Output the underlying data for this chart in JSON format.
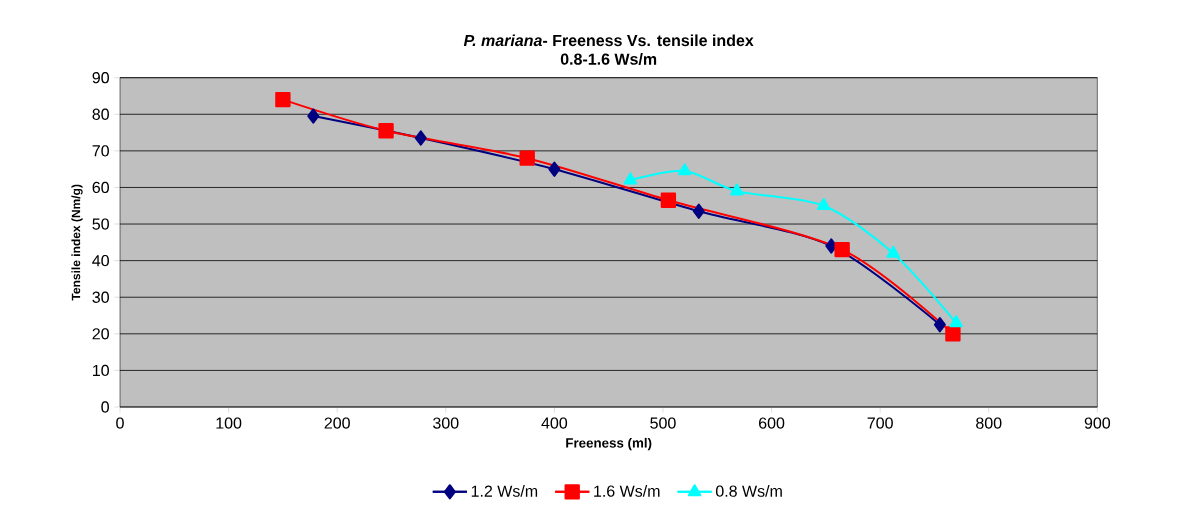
{
  "chart_data": {
    "type": "line",
    "title": "*P. mariana*- Freeness Vs. tensile index",
    "subtitle": "0.8-1.6 Ws/m",
    "xlabel": "Freeness (ml)",
    "ylabel": "Tensile index (Nm/g)",
    "xlim": [
      0,
      900
    ],
    "xticks": [
      0,
      100,
      200,
      300,
      400,
      500,
      600,
      700,
      800,
      900
    ],
    "ylim": [
      0,
      90
    ],
    "yticks": [
      0,
      10,
      20,
      30,
      40,
      50,
      60,
      70,
      80,
      90
    ],
    "grid": "y",
    "legend": "bottom",
    "series": [
      {
        "name": "1.2 Ws/m",
        "color": "#000080",
        "marker": "diamond",
        "x": [
          178,
          277,
          400,
          533,
          655,
          755
        ],
        "values": [
          79.5,
          73.5,
          65,
          53.5,
          44,
          22.5
        ]
      },
      {
        "name": "1.6 Ws/m",
        "color": "#ff0000",
        "marker": "square",
        "x": [
          150,
          245,
          375,
          505,
          665,
          767
        ],
        "values": [
          84,
          75.5,
          68,
          56.5,
          43,
          20
        ]
      },
      {
        "name": "0.8 Ws/m",
        "color": "#00ffff",
        "marker": "triangle",
        "x": [
          470,
          520,
          568,
          648,
          712,
          770
        ],
        "values": [
          62,
          64.5,
          59,
          55,
          42,
          23
        ]
      }
    ]
  }
}
